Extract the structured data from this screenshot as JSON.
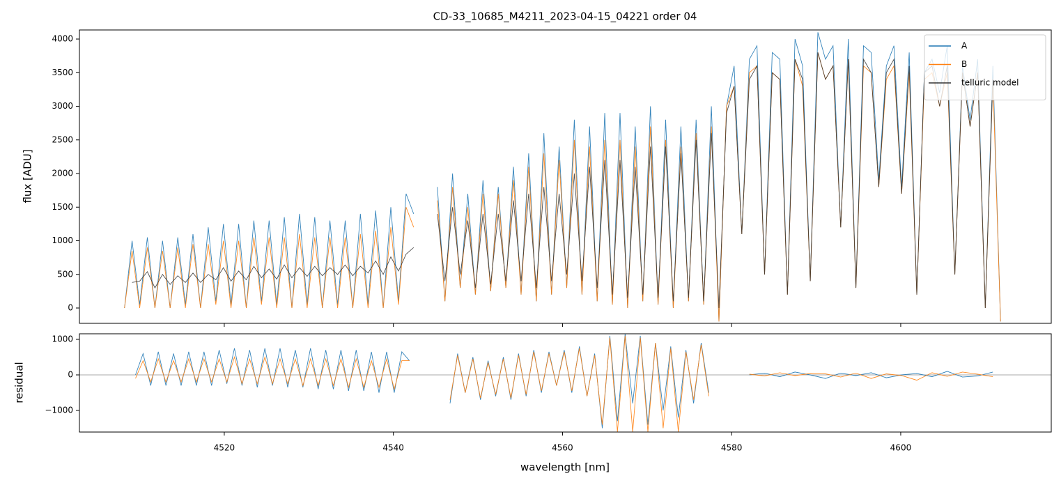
{
  "chart_data": [
    {
      "type": "line",
      "title": "CD-33_10685_M4211_2023-04-15_04221  order 04",
      "ylabel": "flux [ADU]",
      "xlim": [
        4502.87,
        4617.8
      ],
      "ylim": [
        -228,
        4135
      ],
      "xticks": [
        4520,
        4540,
        4560,
        4580,
        4600
      ],
      "yticks": [
        0,
        500,
        1000,
        1500,
        2000,
        2500,
        3000,
        3500,
        4000
      ],
      "legend": "upper right",
      "x": [
        4508.2,
        4509.1,
        4510.0,
        4510.9,
        4511.8,
        4512.7,
        4513.6,
        4514.5,
        4515.4,
        4516.3,
        4517.2,
        4518.1,
        4519.0,
        4519.9,
        4520.8,
        4521.7,
        4522.6,
        4523.5,
        4524.4,
        4525.3,
        4526.2,
        4527.1,
        4528.0,
        4528.9,
        4529.8,
        4530.7,
        4531.6,
        4532.5,
        4533.4,
        4534.3,
        4535.2,
        4536.1,
        4537.0,
        4537.9,
        4538.8,
        4539.7,
        4540.6,
        4541.5,
        4542.4,
        4543.8,
        4545.2,
        4546.1,
        4547.0,
        4547.9,
        4548.8,
        4549.7,
        4550.6,
        4551.5,
        4552.4,
        4553.3,
        4554.2,
        4555.1,
        4556.0,
        4556.9,
        4557.8,
        4558.7,
        4559.6,
        4560.5,
        4561.4,
        4562.3,
        4563.2,
        4564.1,
        4565.0,
        4565.9,
        4566.8,
        4567.7,
        4568.6,
        4569.5,
        4570.4,
        4571.3,
        4572.2,
        4573.1,
        4574.0,
        4574.9,
        4575.8,
        4576.7,
        4577.6,
        4578.5,
        4579.4,
        4580.3,
        4581.2,
        4582.1,
        4583.0,
        4583.9,
        4584.8,
        4585.7,
        4586.6,
        4587.5,
        4588.4,
        4589.3,
        4590.2,
        4591.1,
        4592.0,
        4592.9,
        4593.8,
        4594.7,
        4595.6,
        4596.5,
        4597.4,
        4598.3,
        4599.2,
        4600.1,
        4601.0,
        4601.9,
        4602.8,
        4603.7,
        4604.6,
        4605.5,
        4606.4,
        4607.3,
        4608.2,
        4609.1,
        4610.0,
        4610.9,
        4611.8
      ],
      "series": [
        {
          "name": "A",
          "color": "#1f77b4",
          "values": [
            0,
            1000,
            50,
            1050,
            0,
            1000,
            0,
            1050,
            50,
            1100,
            0,
            1200,
            100,
            1250,
            50,
            1250,
            0,
            1300,
            100,
            1300,
            50,
            1350,
            0,
            1400,
            50,
            1350,
            0,
            1300,
            50,
            1300,
            0,
            1400,
            50,
            1450,
            0,
            1500,
            100,
            1700,
            1400,
            null,
            1800,
            100,
            2000,
            300,
            1700,
            200,
            1900,
            250,
            1800,
            300,
            2100,
            200,
            2300,
            100,
            2600,
            200,
            2400,
            300,
            2800,
            200,
            2700,
            100,
            2900,
            50,
            2900,
            0,
            2700,
            100,
            3000,
            50,
            2800,
            0,
            2700,
            100,
            2800,
            50,
            3000,
            -200,
            3000,
            3600,
            1100,
            3700,
            3900,
            500,
            3800,
            3700,
            200,
            4000,
            3600,
            400,
            4100,
            3700,
            3900,
            1200,
            4000,
            300,
            3900,
            3800,
            1900,
            3600,
            3900,
            1800,
            3800,
            200,
            3500,
            3700,
            3200,
            3900,
            500,
            3600,
            2800,
            3700,
            0,
            3600,
            -200
          ]
        },
        {
          "name": "B",
          "color": "#ff7f0e",
          "values": [
            0,
            850,
            0,
            900,
            0,
            850,
            0,
            900,
            0,
            950,
            0,
            950,
            50,
            1000,
            0,
            1000,
            0,
            1050,
            50,
            1050,
            0,
            1050,
            0,
            1100,
            0,
            1050,
            0,
            1050,
            0,
            1050,
            0,
            1100,
            0,
            1150,
            0,
            1200,
            50,
            1500,
            1200,
            null,
            1600,
            100,
            1800,
            300,
            1500,
            200,
            1700,
            250,
            1700,
            300,
            1900,
            200,
            2100,
            100,
            2300,
            200,
            2200,
            300,
            2500,
            200,
            2400,
            100,
            2500,
            50,
            2500,
            0,
            2400,
            100,
            2700,
            50,
            2500,
            0,
            2400,
            100,
            2600,
            50,
            2700,
            -200,
            3000,
            3300,
            1100,
            3500,
            3600,
            500,
            3500,
            3400,
            200,
            3700,
            3300,
            400,
            3800,
            3400,
            3600,
            1200,
            3700,
            300,
            3600,
            3500,
            1800,
            3400,
            3600,
            1700,
            3500,
            200,
            3400,
            3500,
            3000,
            3500,
            500,
            3500,
            2700,
            3500,
            0,
            3400,
            -200
          ]
        },
        {
          "name": "telluric model",
          "color": "#333333",
          "values": [
            null,
            380,
            400,
            540,
            300,
            500,
            350,
            480,
            380,
            520,
            380,
            500,
            420,
            600,
            400,
            550,
            420,
            620,
            450,
            580,
            430,
            640,
            450,
            600,
            470,
            620,
            480,
            600,
            500,
            640,
            480,
            620,
            520,
            700,
            500,
            760,
            550,
            800,
            900,
            null,
            1400,
            400,
            1500,
            500,
            1300,
            300,
            1400,
            350,
            1400,
            400,
            1600,
            400,
            1700,
            300,
            1800,
            400,
            1700,
            500,
            2000,
            400,
            2100,
            300,
            2200,
            200,
            2200,
            150,
            2100,
            200,
            2400,
            150,
            2400,
            100,
            2300,
            150,
            2500,
            100,
            2600,
            0,
            2900,
            3300,
            1100,
            3400,
            3600,
            500,
            3500,
            3400,
            200,
            3700,
            3400,
            400,
            3800,
            3400,
            3600,
            1200,
            3700,
            300,
            3700,
            3500,
            1800,
            3500,
            3700,
            1700,
            3600,
            200,
            3500,
            3600,
            3000,
            3600,
            500,
            3500,
            2700,
            3500,
            0,
            3400,
            null
          ]
        }
      ]
    },
    {
      "type": "line",
      "ylabel": "residual",
      "xlabel": "wavelength [nm]",
      "xlim": [
        4502.87,
        4617.8
      ],
      "ylim": [
        -1608,
        1157
      ],
      "xticks": [
        4520,
        4540,
        4560,
        4580,
        4600
      ],
      "yticks": [
        {
          "value": -1000,
          "label": "−1000"
        },
        0,
        1000
      ],
      "hline": 0,
      "x": [
        4509.5,
        4510.4,
        4511.3,
        4512.2,
        4513.1,
        4514.0,
        4514.9,
        4515.8,
        4516.7,
        4517.6,
        4518.5,
        4519.4,
        4520.3,
        4521.2,
        4522.1,
        4523.0,
        4523.9,
        4524.8,
        4525.7,
        4526.6,
        4527.5,
        4528.4,
        4529.3,
        4530.2,
        4531.1,
        4532.0,
        4532.9,
        4533.8,
        4534.7,
        4535.6,
        4536.5,
        4537.4,
        4538.3,
        4539.2,
        4540.1,
        4541.0,
        4541.9,
        4544.0,
        4546.7,
        4547.6,
        4548.5,
        4549.4,
        4550.3,
        4551.2,
        4552.1,
        4553.0,
        4553.9,
        4554.8,
        4555.7,
        4556.6,
        4557.5,
        4558.4,
        4559.3,
        4560.2,
        4561.1,
        4562.0,
        4562.9,
        4563.8,
        4564.7,
        4565.6,
        4566.5,
        4567.4,
        4568.3,
        4569.2,
        4570.1,
        4571.0,
        4571.9,
        4572.8,
        4573.7,
        4574.6,
        4575.5,
        4576.4,
        4577.3,
        4579.7,
        4582.1,
        4583.9,
        4585.7,
        4587.5,
        4589.3,
        4591.1,
        4592.9,
        4594.7,
        4596.5,
        4598.3,
        4600.1,
        4601.9,
        4603.7,
        4605.5,
        4607.3,
        4609.1,
        4610.9
      ],
      "series": [
        {
          "color": "#1f77b4",
          "values": [
            0,
            600,
            -300,
            650,
            -300,
            600,
            -300,
            650,
            -300,
            650,
            -300,
            700,
            -250,
            750,
            -300,
            700,
            -350,
            750,
            -300,
            750,
            -350,
            700,
            -350,
            750,
            -400,
            700,
            -400,
            700,
            -450,
            700,
            -450,
            650,
            -500,
            650,
            -500,
            650,
            400,
            null,
            -800,
            600,
            -500,
            500,
            -700,
            400,
            -600,
            500,
            -700,
            600,
            -600,
            700,
            -500,
            650,
            -300,
            700,
            -500,
            800,
            -600,
            600,
            -1500,
            1100,
            -1300,
            1150,
            -800,
            1100,
            -1400,
            900,
            -1000,
            800,
            -1200,
            700,
            -800,
            900,
            -500,
            null,
            0,
            50,
            -50,
            80,
            0,
            -100,
            50,
            -20,
            60,
            -80,
            0,
            40,
            -50,
            100,
            -60,
            -30,
            80
          ]
        },
        {
          "color": "#ff7f0e",
          "values": [
            -100,
            400,
            -200,
            450,
            -200,
            400,
            -200,
            450,
            -200,
            450,
            -200,
            450,
            -200,
            500,
            -250,
            450,
            -250,
            500,
            -250,
            450,
            -250,
            450,
            -300,
            450,
            -300,
            450,
            -300,
            450,
            -350,
            450,
            -350,
            400,
            -350,
            450,
            -400,
            400,
            400,
            null,
            -700,
            550,
            -500,
            450,
            -650,
            350,
            -550,
            450,
            -650,
            550,
            -550,
            650,
            -450,
            600,
            -300,
            650,
            -450,
            750,
            -600,
            550,
            -1400,
            1050,
            -1600,
            1100,
            -1600,
            1050,
            -1600,
            900,
            -1500,
            750,
            -1600,
            650,
            -700,
            850,
            -600,
            null,
            20,
            -30,
            60,
            -20,
            40,
            30,
            -60,
            50,
            -100,
            30,
            -20,
            -150,
            60,
            -40,
            80,
            20,
            -50
          ]
        }
      ]
    }
  ]
}
